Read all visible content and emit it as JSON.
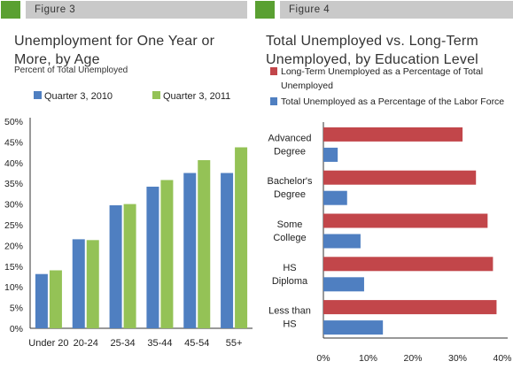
{
  "figures": [
    {
      "label": "Figure 3",
      "title_line1": "Unemployment for One Year or",
      "title_line2": "More, by Age",
      "subtitle": "Percent of Total Unemployed"
    },
    {
      "label": "Figure 4",
      "title_line1": "Total Unemployed vs. Long-Term",
      "title_line2": "Unemployed, by Education Level"
    }
  ],
  "colors": {
    "header_green": "#5aa032",
    "header_gray": "#c9c9c9",
    "blue": "#4f7fc1",
    "green": "#94c256",
    "red": "#c2464a"
  },
  "chart_data": [
    {
      "type": "bar",
      "categories": [
        "Under 20",
        "20-24",
        "25-34",
        "35-44",
        "45-54",
        "55+"
      ],
      "series": [
        {
          "name": "Quarter 3, 2010",
          "color": "#4f7fc1",
          "values": [
            13.1,
            21.5,
            29.7,
            34.2,
            37.5,
            37.5
          ]
        },
        {
          "name": "Quarter 3, 2011",
          "color": "#94c256",
          "values": [
            14.0,
            21.3,
            30.0,
            35.8,
            40.6,
            43.7
          ]
        }
      ],
      "yticks": [
        "0%",
        "5%",
        "10%",
        "15%",
        "20%",
        "25%",
        "30%",
        "35%",
        "40%",
        "45%",
        "50%"
      ],
      "ylim": [
        0,
        50
      ],
      "grid": false,
      "legend": "top"
    },
    {
      "type": "bar",
      "orientation": "horizontal",
      "categories": [
        {
          "line1": "Advanced",
          "line2": "Degree"
        },
        {
          "line1": "Bachelor's",
          "line2": "Degree"
        },
        {
          "line1": "Some",
          "line2": "College"
        },
        {
          "line1": "HS",
          "line2": "Diploma"
        },
        {
          "line1": "Less than",
          "line2": "HS"
        }
      ],
      "series": [
        {
          "name_line1": "Long-Term Unemployed as a Percentage of Total",
          "name_line2": "Unemployed",
          "color": "#c2464a",
          "values": [
            31.1,
            34.1,
            36.7,
            37.9,
            38.7
          ]
        },
        {
          "name_line1": "Total Unemployed as a Percentage of the Labor Force",
          "name_line2": "",
          "color": "#4f7fc1",
          "values": [
            3.2,
            5.3,
            8.3,
            9.1,
            13.3
          ]
        }
      ],
      "xticks": [
        "0%",
        "10%",
        "20%",
        "30%",
        "40%"
      ],
      "xlim": [
        0,
        40
      ],
      "grid": false,
      "legend": "top"
    }
  ]
}
